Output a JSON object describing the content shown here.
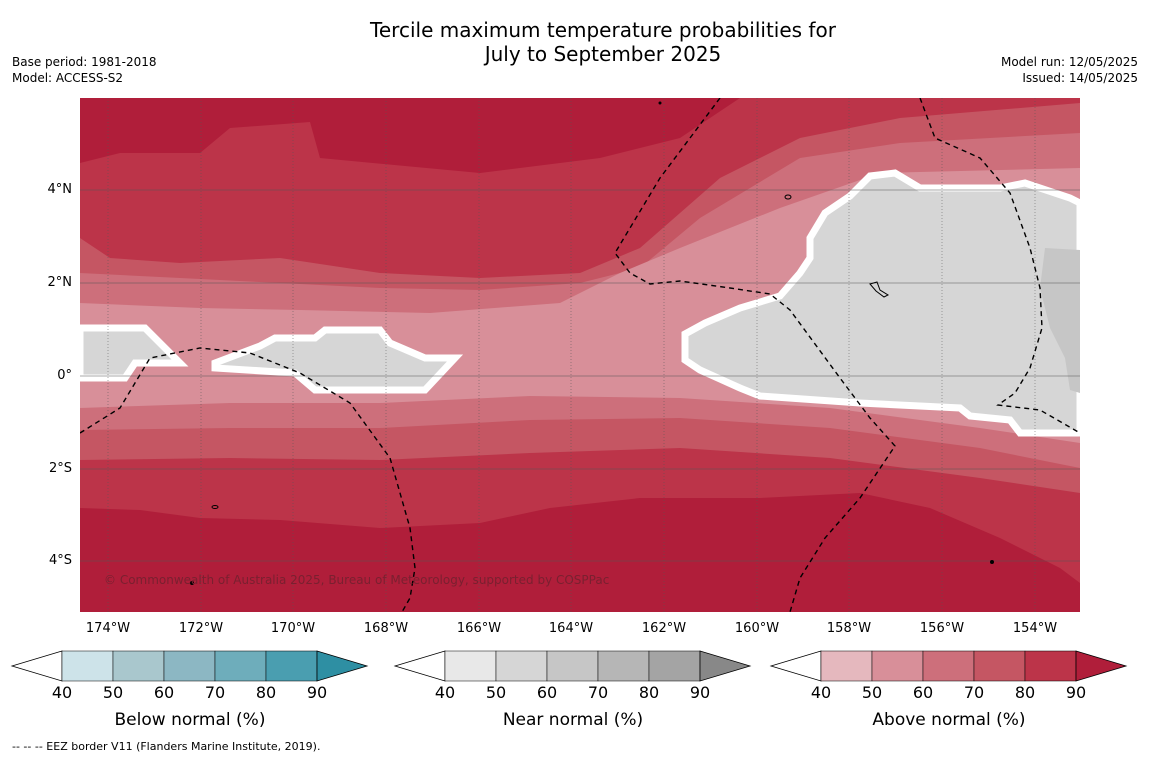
{
  "title_line1": "Tercile maximum temperature probabilities for",
  "title_line2": "July to September 2025",
  "meta_left": [
    "Base period: 1981-2018",
    "Model: ACCESS-S2"
  ],
  "meta_right": [
    "Model run: 12/05/2025",
    "Issued: 14/05/2025"
  ],
  "lat_labels": [
    "4°N",
    "2°N",
    "0°",
    "2°S",
    "4°S"
  ],
  "lon_labels": [
    "174°W",
    "172°W",
    "170°W",
    "168°W",
    "166°W",
    "164°W",
    "162°W",
    "160°W",
    "158°W",
    "156°W",
    "154°W"
  ],
  "copyright": "© Commonwealth of Australia 2025, Bureau of Meteorology, supported by COSPPac",
  "legends": [
    {
      "title": "Below normal (%)",
      "ticks": [
        "40",
        "50",
        "60",
        "70",
        "80",
        "90"
      ],
      "colors": [
        "#cde3e9",
        "#a9c7cd",
        "#8cb7c3",
        "#6eadbb",
        "#4a9eb0",
        "#2e8fa3"
      ]
    },
    {
      "title": "Near normal (%)",
      "ticks": [
        "40",
        "50",
        "60",
        "70",
        "80",
        "90"
      ],
      "colors": [
        "#e8e8e8",
        "#d6d6d6",
        "#c6c6c6",
        "#b6b6b6",
        "#a4a4a4",
        "#888888"
      ]
    },
    {
      "title": "Above normal (%)",
      "ticks": [
        "40",
        "50",
        "60",
        "70",
        "80",
        "90"
      ],
      "colors": [
        "#e5b8be",
        "#d88f99",
        "#cd6f7b",
        "#c55663",
        "#bc3449",
        "#b01e3a"
      ]
    }
  ],
  "footnote": "--  --  -- EEZ border V11 (Flanders Marine Institute, 2019)."
}
